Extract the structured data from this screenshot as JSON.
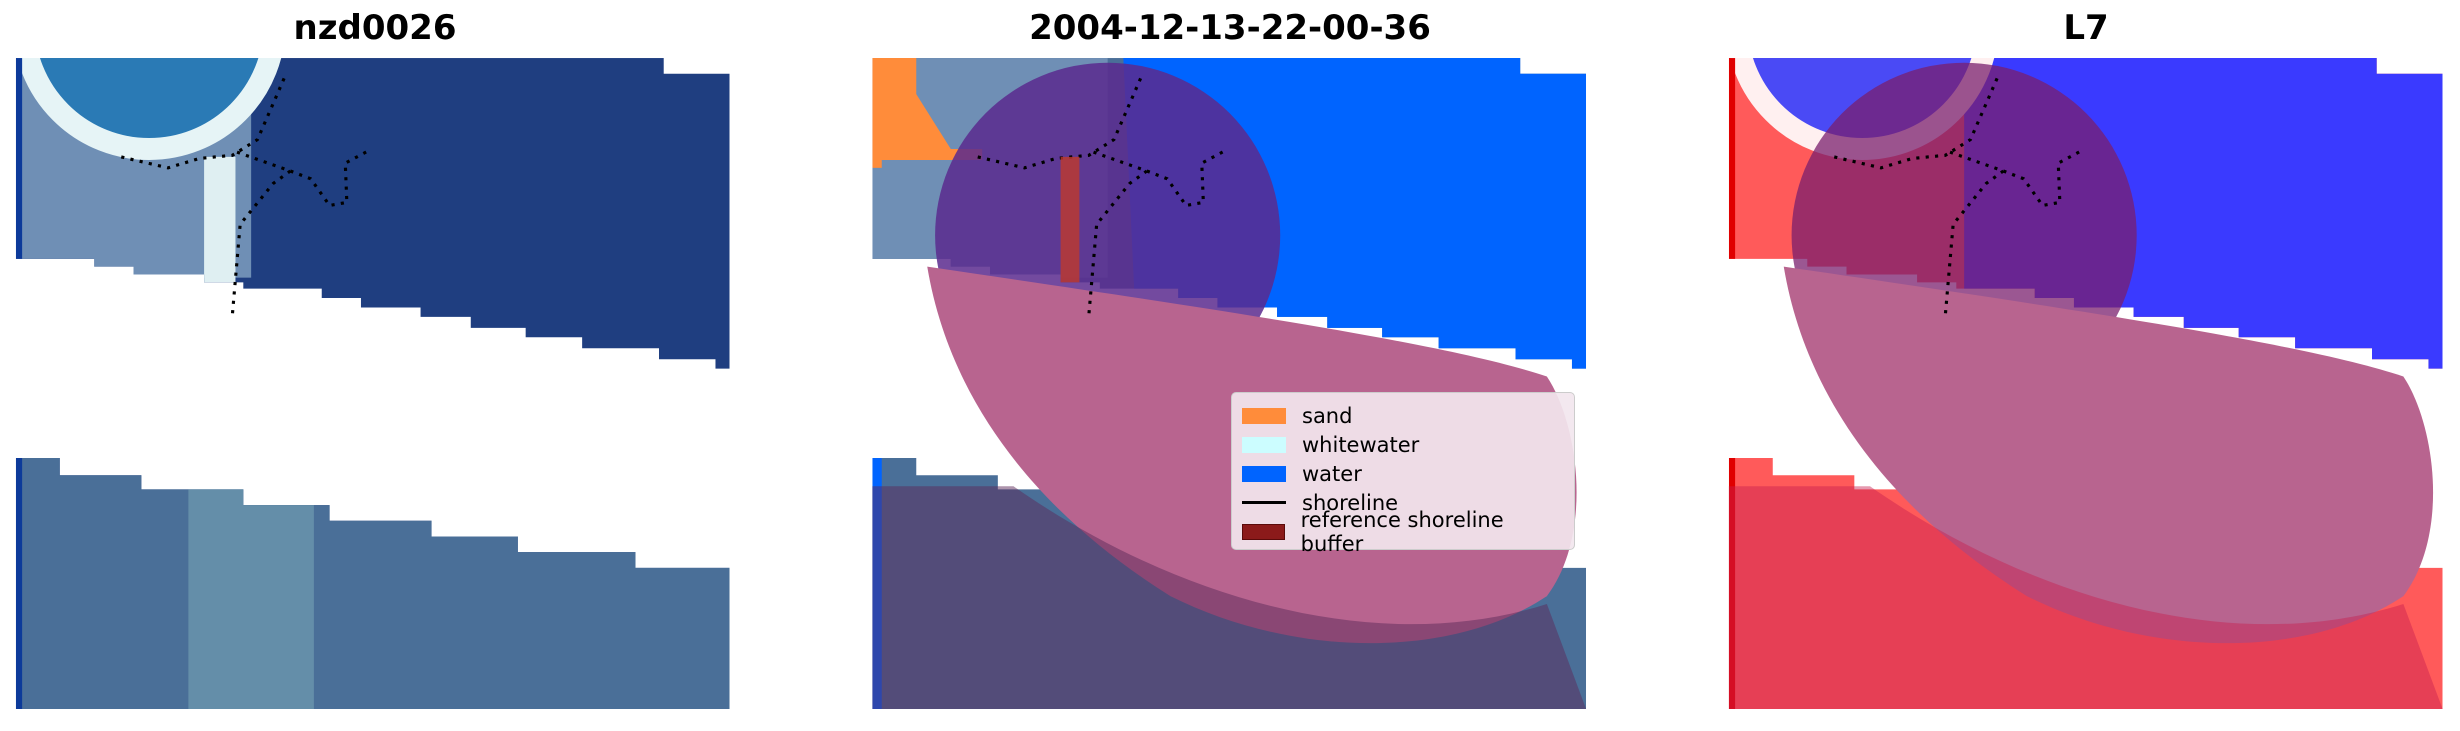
{
  "panels": [
    {
      "title": "nzd0026"
    },
    {
      "title": "2004-12-13-22-00-36"
    },
    {
      "title": "L7"
    }
  ],
  "legend": {
    "items": [
      {
        "label": "sand",
        "color": "#ff8c3a",
        "kind": "patch"
      },
      {
        "label": "whitewater",
        "color": "#ccfdff",
        "kind": "patch"
      },
      {
        "label": "water",
        "color": "#0064ff",
        "kind": "patch"
      },
      {
        "label": "shoreline",
        "color": "#000000",
        "kind": "line"
      },
      {
        "label": "reference shoreline buffer",
        "color": "#8b1a1a",
        "kind": "patch"
      }
    ]
  }
}
